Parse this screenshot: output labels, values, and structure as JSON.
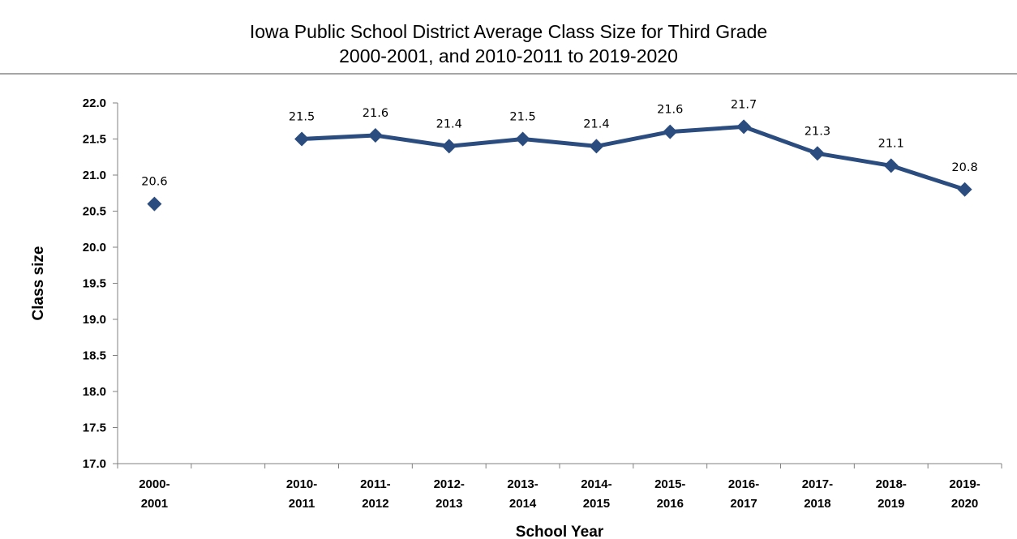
{
  "chart_data": {
    "type": "line",
    "title": "Iowa Public School District Average Class Size for Third Grade",
    "subtitle": "2000-2001, and 2010-2011 to 2019-2020",
    "xlabel": "School Year",
    "ylabel": "Class size",
    "ylim": [
      17.0,
      22.0
    ],
    "y_ticks": [
      "17.0",
      "17.5",
      "18.0",
      "18.5",
      "19.0",
      "19.5",
      "20.0",
      "20.5",
      "21.0",
      "21.5",
      "22.0"
    ],
    "categories": [
      [
        "2000-",
        "2001"
      ],
      [
        "",
        ""
      ],
      [
        "2010-",
        "2011"
      ],
      [
        "2011-",
        "2012"
      ],
      [
        "2012-",
        "2013"
      ],
      [
        "2013-",
        "2014"
      ],
      [
        "2014-",
        "2015"
      ],
      [
        "2015-",
        "2016"
      ],
      [
        "2016-",
        "2017"
      ],
      [
        "2017-",
        "2018"
      ],
      [
        "2018-",
        "2019"
      ],
      [
        "2019-",
        "2020"
      ]
    ],
    "series": [
      {
        "values": [
          20.6,
          null,
          21.5,
          21.55,
          21.4,
          21.5,
          21.4,
          21.6,
          21.67,
          21.3,
          21.13,
          20.8
        ],
        "labels": [
          "20.6",
          "",
          "21.5",
          "21.6",
          "21.4",
          "21.5",
          "21.4",
          "21.6",
          "21.7",
          "21.3",
          "21.1",
          "20.8"
        ],
        "color": "#2b4c7e"
      }
    ],
    "grid": false,
    "legend": "none"
  }
}
